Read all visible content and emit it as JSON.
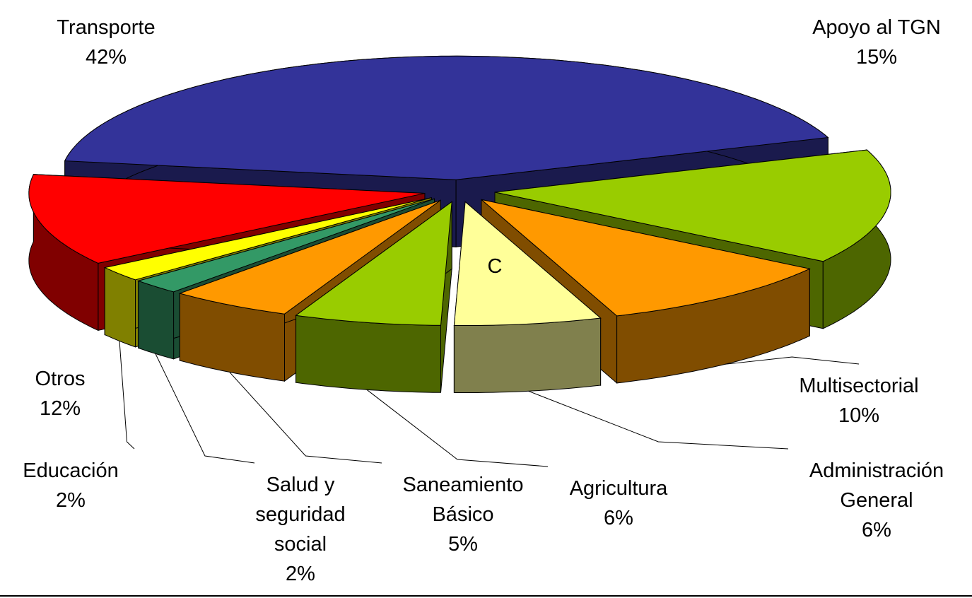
{
  "chart_data": {
    "type": "pie3d",
    "categories": [
      "Transporte",
      "Apoyo al TGN",
      "Multisectorial",
      "Administración General",
      "Agricultura",
      "Saneamiento Básico",
      "Salud y seguridad social",
      "Educación",
      "Otros"
    ],
    "values": [
      42,
      15,
      10,
      6,
      6,
      5,
      2,
      2,
      12
    ],
    "value_labels": [
      "42%",
      "15%",
      "10%",
      "6%",
      "6%",
      "5%",
      "2%",
      "2%",
      "12%"
    ],
    "colors": [
      "#333399",
      "#99cc00",
      "#ff9900",
      "#ffff99",
      "#99cc00",
      "#ff9900",
      "#339966",
      "#ffff00",
      "#ff0000"
    ],
    "annotation": "C"
  }
}
